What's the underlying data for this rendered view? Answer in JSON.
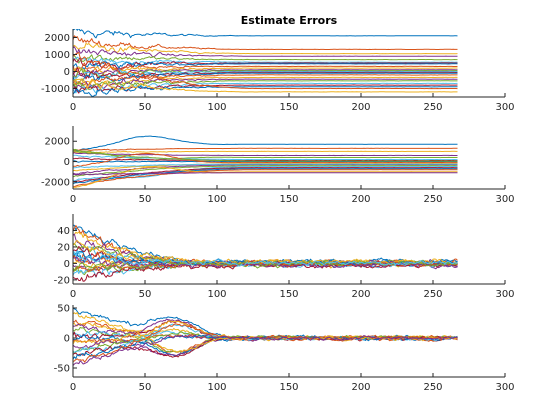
{
  "chart_data": {
    "type": "line",
    "title": "Estimate Errors",
    "x_count": 268,
    "colors": [
      "#0072BD",
      "#D95319",
      "#EDB120",
      "#7E2F8E",
      "#77AC30",
      "#4DBEEE",
      "#A2142F"
    ],
    "subplots": [
      {
        "xlim": [
          0,
          300
        ],
        "ylim": [
          -1500,
          2500
        ],
        "xticks": [
          0,
          50,
          100,
          150,
          200,
          250,
          300
        ],
        "yticks": [
          -1000,
          0,
          1000,
          2000
        ],
        "ytick_labels": [
          "-1000",
          "0",
          "1000",
          "2000"
        ],
        "series_finals": [
          2100,
          1300,
          1050,
          900,
          700,
          550,
          500,
          450,
          300,
          200,
          100,
          50,
          0,
          -50,
          -100,
          -200,
          -350,
          -450,
          -550,
          -700,
          -800,
          -900,
          -1000,
          -1200
        ],
        "series_starts": [
          2300,
          1800,
          1500,
          1200,
          900,
          700,
          500,
          300,
          150,
          0,
          -100,
          -200,
          -300,
          -400,
          -500,
          -600,
          -700,
          -800,
          -900,
          -1000,
          -1100,
          -1200,
          1000,
          -500
        ],
        "noise_early": 250,
        "noise_late": 5,
        "settle_x": 130
      },
      {
        "xlim": [
          0,
          300
        ],
        "ylim": [
          -2700,
          3500
        ],
        "xticks": [
          0,
          50,
          100,
          150,
          200,
          250,
          300
        ],
        "yticks": [
          -2000,
          0,
          2000
        ],
        "ytick_labels": [
          "-2000",
          "0",
          "2000"
        ],
        "series_finals": [
          1700,
          1300,
          1000,
          600,
          400,
          200,
          100,
          0,
          -100,
          -200,
          -300,
          -400,
          -500,
          -600,
          -700,
          -800,
          -1000,
          -1100,
          50,
          -250
        ],
        "series_starts": [
          1000,
          1100,
          900,
          800,
          1200,
          600,
          300,
          0,
          -500,
          -900,
          -1200,
          -1500,
          -1800,
          -2000,
          -2200,
          -2400,
          -2600,
          -1300,
          1050,
          -600
        ],
        "bump_amp": 2300,
        "bump_peak_x": 50,
        "noise_early": 60,
        "noise_late": 5,
        "settle_x": 130
      },
      {
        "xlim": [
          0,
          300
        ],
        "ylim": [
          -25,
          60
        ],
        "xticks": [
          0,
          50,
          100,
          150,
          200,
          250,
          300
        ],
        "yticks": [
          -20,
          0,
          20,
          40
        ],
        "ytick_labels": [
          "-20",
          "0",
          "20",
          "40"
        ],
        "series_finals": [
          3,
          2,
          2,
          1,
          1,
          0,
          0,
          0,
          0,
          -1,
          -1,
          -2,
          -2,
          -3,
          1,
          -1,
          2,
          -2,
          0,
          1
        ],
        "series_starts": [
          48,
          40,
          35,
          30,
          25,
          20,
          15,
          10,
          5,
          0,
          -5,
          -10,
          -15,
          -20,
          12,
          -8,
          22,
          3,
          -3,
          8
        ],
        "noise_early": 5,
        "noise_late": 2,
        "settle_x": 95
      },
      {
        "xlim": [
          0,
          300
        ],
        "ylim": [
          -65,
          55
        ],
        "xticks": [
          0,
          50,
          100,
          150,
          200,
          250,
          300
        ],
        "yticks": [
          -50,
          0,
          50
        ],
        "ytick_labels": [
          "-50",
          "0",
          "50"
        ],
        "series_finals": [
          2,
          1,
          1,
          0,
          0,
          0,
          -1,
          -1,
          -2,
          2,
          0,
          1,
          -1,
          0,
          0,
          1,
          -1,
          0
        ],
        "series_starts": [
          50,
          30,
          25,
          20,
          15,
          10,
          5,
          0,
          -5,
          -10,
          -15,
          -20,
          -25,
          -30,
          -35,
          -40,
          40,
          -45
        ],
        "swing_amp": 45,
        "swing_peak_x": 70,
        "noise_early": 4,
        "noise_late": 2,
        "settle_x": 110
      }
    ]
  }
}
